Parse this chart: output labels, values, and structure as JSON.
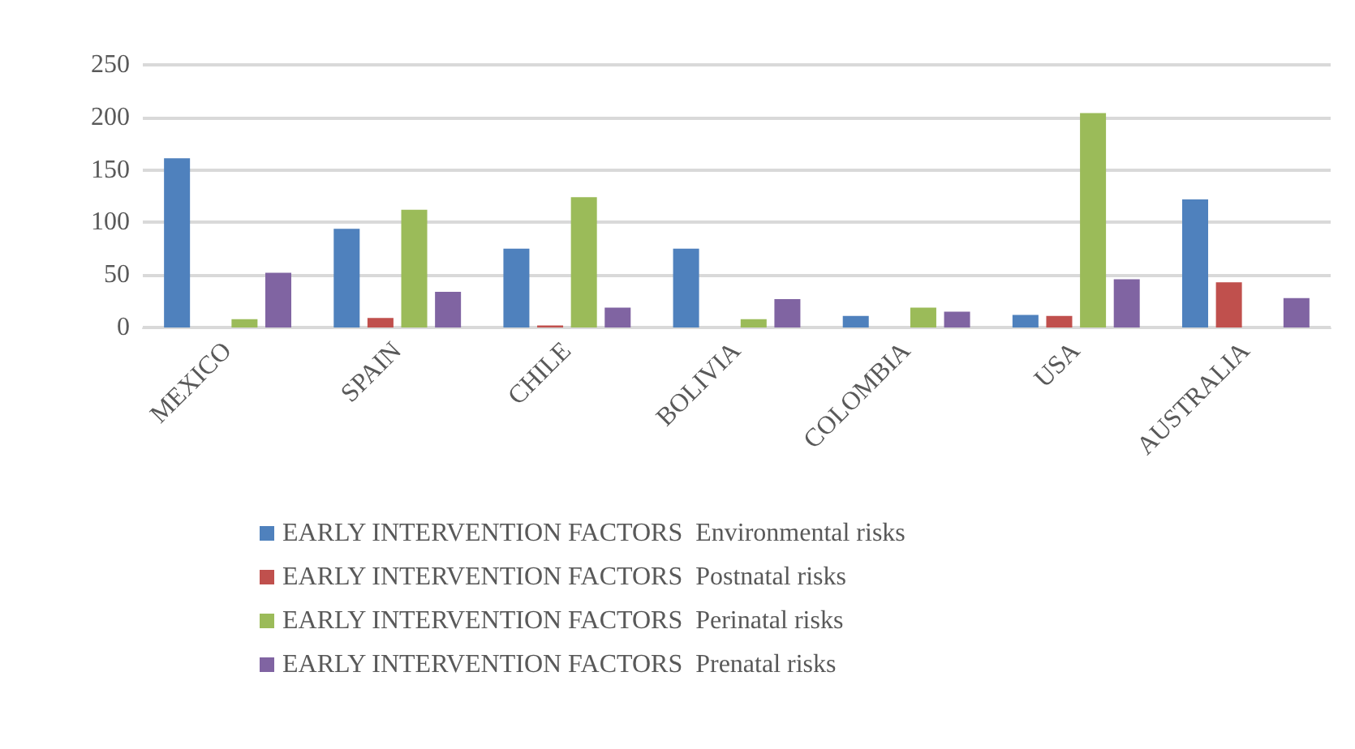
{
  "chart_data": {
    "type": "bar",
    "categories": [
      "MEXICO",
      "SPAIN",
      "CHILE",
      "BOLIVIA",
      "COLOMBIA",
      "USA",
      "AUSTRALIA"
    ],
    "series": [
      {
        "name": "EARLY INTERVENTION FACTORS  Environmental risks",
        "color": "#4f81bd",
        "values": [
          161,
          94,
          75,
          75,
          11,
          12,
          122
        ]
      },
      {
        "name": "EARLY INTERVENTION FACTORS  Postnatal risks",
        "color": "#c0504d",
        "values": [
          null,
          9,
          2,
          null,
          null,
          11,
          43
        ]
      },
      {
        "name": "EARLY INTERVENTION FACTORS  Perinatal risks",
        "color": "#9bbb59",
        "values": [
          8,
          112,
          124,
          8,
          19,
          204,
          null
        ]
      },
      {
        "name": "EARLY INTERVENTION FACTORS  Prenatal risks",
        "color": "#8064a2",
        "values": [
          52,
          34,
          19,
          27,
          15,
          46,
          28
        ]
      }
    ],
    "ylim": [
      0,
      250
    ],
    "yticks": [
      0,
      50,
      100,
      150,
      200,
      250
    ],
    "grid": "y",
    "legend": "bottom"
  }
}
